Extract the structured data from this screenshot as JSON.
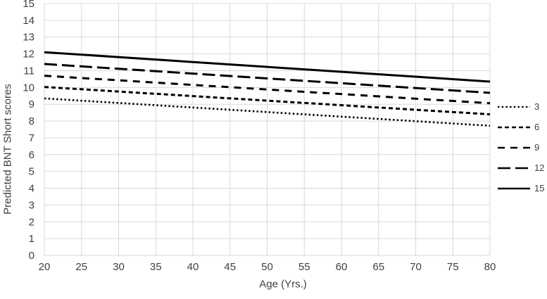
{
  "chart_data": {
    "type": "line",
    "title": "",
    "xlabel": "Age (Yrs.)",
    "ylabel": "Predicted BNT Short scores",
    "xlim": [
      20,
      80
    ],
    "ylim": [
      0,
      15
    ],
    "x_ticks": [
      20,
      25,
      30,
      35,
      40,
      45,
      50,
      55,
      60,
      65,
      70,
      75,
      80
    ],
    "y_ticks": [
      0,
      1,
      2,
      3,
      4,
      5,
      6,
      7,
      8,
      9,
      10,
      11,
      12,
      13,
      14,
      15
    ],
    "grid": true,
    "legend_position": "right",
    "legend_title": "",
    "x": [
      20,
      80
    ],
    "series": [
      {
        "name": "3",
        "values": [
          9.35,
          7.72
        ],
        "line_style": "dotted",
        "dash": "2.5 3.2",
        "width": 2.6
      },
      {
        "name": "6",
        "values": [
          10.03,
          8.4
        ],
        "line_style": "short-dash",
        "dash": "6 4",
        "width": 3
      },
      {
        "name": "9",
        "values": [
          10.7,
          9.06
        ],
        "line_style": "medium-dash",
        "dash": "10 8",
        "width": 3
      },
      {
        "name": "12",
        "values": [
          11.4,
          9.68
        ],
        "line_style": "long-dash",
        "dash": "18 7",
        "width": 3
      },
      {
        "name": "15",
        "values": [
          12.1,
          10.35
        ],
        "line_style": "solid",
        "dash": "",
        "width": 3
      }
    ],
    "colors": {
      "line": "#000000",
      "grid": "#d9d9d9",
      "text": "#404040",
      "background": "#ffffff"
    }
  }
}
